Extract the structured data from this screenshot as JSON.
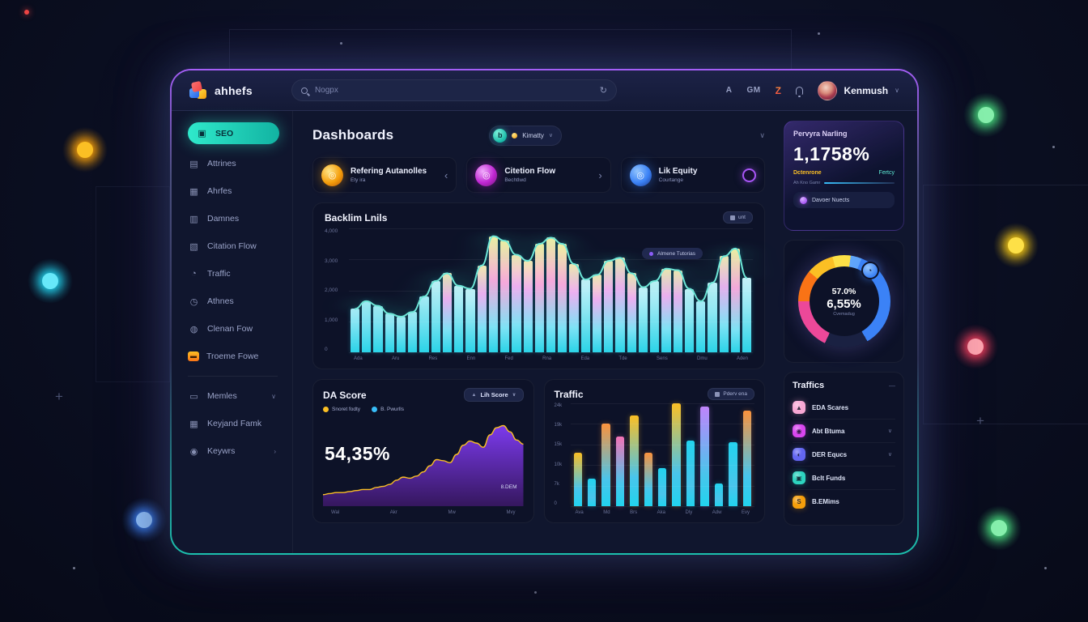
{
  "window": {
    "brand": "ahhefs"
  },
  "topbar": {
    "search": {
      "placeholder": "Nogpx",
      "action_glyph": "↻"
    },
    "icons": [
      {
        "name": "activity-icon",
        "glyph": "A"
      },
      {
        "name": "gm-icon",
        "glyph": "GM"
      },
      {
        "name": "hot-icon",
        "glyph": "Z"
      }
    ],
    "user": {
      "name": "Kenmush"
    }
  },
  "sidebar": {
    "items": [
      {
        "label": "SEO",
        "icon": "lock-icon",
        "glyph": "▣",
        "active": true
      },
      {
        "label": "Attrines",
        "icon": "card-icon",
        "glyph": "▤"
      },
      {
        "label": "Ahrfes",
        "icon": "grid-icon",
        "glyph": "▦"
      },
      {
        "label": "Damnes",
        "icon": "list-icon",
        "glyph": "▥"
      },
      {
        "label": "Citation Flow",
        "icon": "chat-icon",
        "glyph": "▧"
      },
      {
        "label": "Traffic",
        "icon": "flask-icon",
        "glyph": "◔"
      },
      {
        "label": "Athnes",
        "icon": "clock-icon",
        "glyph": "◷"
      },
      {
        "label": "Clenan Fow",
        "icon": "users-icon",
        "glyph": "◍"
      },
      {
        "label": "Troeme Fowe",
        "icon": "folder-icon",
        "glyph": "▬",
        "orange": true
      },
      {
        "divider": true
      },
      {
        "label": "Memles",
        "icon": "monitor-icon",
        "glyph": "▭",
        "chevron": "∨"
      },
      {
        "label": "Keyjand Famk",
        "icon": "calendar-icon",
        "glyph": "▦"
      },
      {
        "label": "Keywrs",
        "icon": "globe-icon",
        "glyph": "◉",
        "chevron": "›"
      }
    ]
  },
  "main": {
    "title": "Dashboards",
    "header_pill": {
      "icon_glyph": "b",
      "label": "Kimatty"
    },
    "stat_cards": [
      {
        "title": "Refering Autanolles",
        "subtitle": "Ety ira",
        "accent": "#f59e0b",
        "icon": "rings-orange-icon",
        "action": "‹",
        "action_type": "chevron"
      },
      {
        "title": "Citetion Flow",
        "subtitle": "Bechtlwd",
        "accent": "#c026d3",
        "icon": "swirl-purple-icon",
        "action": "›",
        "action_type": "chevron"
      },
      {
        "title": "Lik Equity",
        "subtitle": "Courtange",
        "accent": "#3b82f6",
        "icon": "shield-blue-icon",
        "action": "",
        "action_type": "ring"
      }
    ],
    "backlinks": {
      "title": "Backlim Lnils",
      "action_label": "unt",
      "legend": "Almene Tutorias"
    },
    "da": {
      "title": "DA Score",
      "dropdown": "Lih Score",
      "value": "54,35%",
      "annotation": "8.DEM",
      "legend": [
        {
          "label": "Snoret fodty",
          "color": "#fbbf24"
        },
        {
          "label": "B. Pwurlls",
          "color": "#38bdf8"
        }
      ]
    },
    "traffic": {
      "title": "Traffic",
      "action_label": "Pderv ena"
    }
  },
  "right": {
    "ranking": {
      "title": "Pervyra Narling",
      "value": "1,1758%",
      "left_label": "Dctenrone",
      "right_label": "Fertcy",
      "meter_label": "Ah Kno Gamr",
      "footer_label": "Davoer Nuects"
    },
    "donut": {
      "primary": "57.0%",
      "secondary": "6,55%",
      "caption": "Cvemadug",
      "badge_glyph": "◔"
    },
    "traffics": {
      "title": "Traffics",
      "items": [
        {
          "label": "EDA Scares",
          "icon_color": "#f9a8d4",
          "glyph": "▲",
          "chevron": false
        },
        {
          "label": "Abt Btuma",
          "icon_color": "#d946ef",
          "glyph": "◉",
          "chevron": true
        },
        {
          "label": "DER Equcs",
          "icon_color": "#6366f1",
          "glyph": "◐",
          "chevron": true
        },
        {
          "label": "Bclt Funds",
          "icon_color": "#2dd4bf",
          "glyph": "▣",
          "chevron": false
        },
        {
          "label": "B.EMims",
          "icon_color": "#f59e0b",
          "glyph": "S",
          "chevron": false
        }
      ]
    }
  },
  "chart_data": [
    {
      "id": "backlinks",
      "type": "bar+line",
      "title": "Backlim Lnils",
      "ylim": [
        0,
        4000
      ],
      "yticks": [
        "4,000",
        "3,000",
        "2,000",
        "1,000",
        "0"
      ],
      "xlabels": [
        "Ada",
        "Aru",
        "Res",
        "Enn",
        "Fed",
        "Rna",
        "Eda",
        "Tde",
        "Sens",
        "Dmu",
        "Aden"
      ],
      "values": [
        1400,
        1650,
        1500,
        1250,
        1150,
        1300,
        1800,
        2300,
        2550,
        2150,
        2050,
        2800,
        3750,
        3600,
        3150,
        2950,
        3500,
        3700,
        3500,
        2850,
        2350,
        2500,
        2950,
        3050,
        2550,
        2100,
        2300,
        2700,
        2650,
        2050,
        1650,
        2250,
        3100,
        3350,
        2400
      ],
      "line_color": "#6ee7d7",
      "legend": "Almene Tutorias",
      "grid": true
    },
    {
      "id": "da",
      "type": "area",
      "title": "DA Score",
      "value_label": "54,35%",
      "annotation": "8.DEM",
      "ylim": [
        0,
        80
      ],
      "values": [
        8,
        9,
        10,
        10,
        11,
        12,
        13,
        13,
        15,
        16,
        18,
        22,
        25,
        24,
        26,
        30,
        36,
        42,
        41,
        39,
        47,
        56,
        60,
        58,
        54,
        66,
        73,
        75,
        69,
        61,
        57
      ],
      "xlabels": [
        "Wal",
        "Akr",
        "Mw",
        "Mvy"
      ],
      "line_color": "#fbbf24",
      "fill_top": "#7c3aed",
      "fill_bottom": "#35175e"
    },
    {
      "id": "traffic",
      "type": "bar",
      "title": "Traffic",
      "ylim": [
        0,
        100
      ],
      "yticks": [
        "24k",
        "19k",
        "15k",
        "10k",
        "7k",
        "0"
      ],
      "xlabels": [
        "Ava",
        "Md",
        "Brs",
        "Aka",
        "Dly",
        "Adw",
        "Evy"
      ],
      "values": [
        52,
        27,
        80,
        68,
        88,
        52,
        37,
        100,
        64,
        97,
        22,
        62,
        93
      ],
      "top_colors": [
        "#fbbf24",
        "#22d3ee",
        "#fb923c",
        "#f472b6",
        "#fbbf24",
        "#fb923c",
        "#22d3ee",
        "#fbbf24",
        "#22d3ee",
        "#c084fc",
        "#22d3ee",
        "#22d3ee",
        "#fb923c"
      ],
      "base_color": "#22d3ee",
      "grid": true
    },
    {
      "id": "engagement_donut",
      "type": "donut",
      "center_primary": "57.0%",
      "center_secondary": "6,55%",
      "caption": "Cvemadug",
      "segments": [
        {
          "color": "#fde047",
          "from": 0,
          "to": 8
        },
        {
          "color": "#60a5fa",
          "from": 8,
          "to": 22
        },
        {
          "color": "#3b82f6",
          "from": 22,
          "to": 150
        },
        {
          "color": "#1a2142",
          "from": 150,
          "to": 205
        },
        {
          "color": "#ec4899",
          "from": 205,
          "to": 270
        },
        {
          "color": "#f97316",
          "from": 270,
          "to": 310
        },
        {
          "color": "#fbbf24",
          "from": 310,
          "to": 345
        },
        {
          "color": "#fde047",
          "from": 345,
          "to": 360
        }
      ]
    }
  ]
}
